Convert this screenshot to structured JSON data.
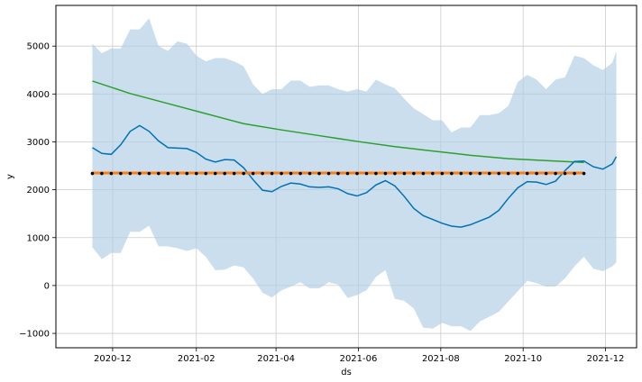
{
  "chart_data": {
    "type": "line",
    "xlabel": "ds",
    "ylabel": "y",
    "x_range": [
      "2020-10-20",
      "2021-12-24"
    ],
    "ylim": [
      -1300,
      5850
    ],
    "grid": true,
    "x_ticks": [
      {
        "date": "2020-12-01",
        "label": "2020-12"
      },
      {
        "date": "2021-02-01",
        "label": "2021-02"
      },
      {
        "date": "2021-04-01",
        "label": "2021-04"
      },
      {
        "date": "2021-06-01",
        "label": "2021-06"
      },
      {
        "date": "2021-08-01",
        "label": "2021-08"
      },
      {
        "date": "2021-10-01",
        "label": "2021-10"
      },
      {
        "date": "2021-12-01",
        "label": "2021-12"
      }
    ],
    "y_ticks": [
      -1000,
      0,
      1000,
      2000,
      3000,
      4000,
      5000
    ],
    "series": [
      {
        "role": "uncertainty-band",
        "color": "#aecde4",
        "x": [
          "2020-11-16",
          "2020-11-23",
          "2020-11-30",
          "2020-12-07",
          "2020-12-14",
          "2020-12-21",
          "2020-12-28",
          "2021-01-04",
          "2021-01-11",
          "2021-01-18",
          "2021-01-25",
          "2021-02-01",
          "2021-02-08",
          "2021-02-15",
          "2021-02-22",
          "2021-03-01",
          "2021-03-08",
          "2021-03-15",
          "2021-03-22",
          "2021-03-29",
          "2021-04-05",
          "2021-04-12",
          "2021-04-19",
          "2021-04-26",
          "2021-05-03",
          "2021-05-10",
          "2021-05-17",
          "2021-05-24",
          "2021-05-31",
          "2021-06-07",
          "2021-06-14",
          "2021-06-21",
          "2021-06-28",
          "2021-07-05",
          "2021-07-12",
          "2021-07-19",
          "2021-07-26",
          "2021-08-02",
          "2021-08-09",
          "2021-08-16",
          "2021-08-23",
          "2021-08-30",
          "2021-09-06",
          "2021-09-13",
          "2021-09-20",
          "2021-09-27",
          "2021-10-04",
          "2021-10-11",
          "2021-10-18",
          "2021-10-25",
          "2021-11-01",
          "2021-11-08",
          "2021-11-15",
          "2021-11-22",
          "2021-11-29",
          "2021-12-06",
          "2021-12-09"
        ],
        "upper": [
          5050,
          4850,
          4950,
          4950,
          5350,
          5350,
          5580,
          5000,
          4900,
          5100,
          5050,
          4800,
          4680,
          4750,
          4750,
          4680,
          4580,
          4200,
          4000,
          4100,
          4100,
          4280,
          4280,
          4150,
          4180,
          4180,
          4100,
          4050,
          4100,
          4050,
          4300,
          4200,
          4120,
          3900,
          3700,
          3580,
          3450,
          3450,
          3200,
          3300,
          3300,
          3560,
          3560,
          3600,
          3750,
          4250,
          4400,
          4300,
          4100,
          4300,
          4350,
          4800,
          4750,
          4600,
          4500,
          4650,
          4900
        ],
        "lower": [
          800,
          550,
          680,
          680,
          1120,
          1120,
          1250,
          820,
          820,
          780,
          720,
          780,
          600,
          320,
          330,
          420,
          380,
          150,
          -150,
          -250,
          -100,
          -20,
          70,
          -60,
          -60,
          70,
          20,
          -260,
          -200,
          -100,
          180,
          320,
          -280,
          -320,
          -480,
          -880,
          -900,
          -780,
          -850,
          -850,
          -950,
          -750,
          -650,
          -550,
          -330,
          -120,
          100,
          50,
          -20,
          -20,
          150,
          400,
          600,
          350,
          300,
          400,
          480
        ]
      },
      {
        "role": "forecast",
        "color": "#0072b2",
        "x": [
          "2020-11-16",
          "2020-11-23",
          "2020-11-30",
          "2020-12-07",
          "2020-12-14",
          "2020-12-21",
          "2020-12-28",
          "2021-01-04",
          "2021-01-11",
          "2021-01-18",
          "2021-01-25",
          "2021-02-01",
          "2021-02-08",
          "2021-02-15",
          "2021-02-22",
          "2021-03-01",
          "2021-03-08",
          "2021-03-15",
          "2021-03-22",
          "2021-03-29",
          "2021-04-05",
          "2021-04-12",
          "2021-04-19",
          "2021-04-26",
          "2021-05-03",
          "2021-05-10",
          "2021-05-17",
          "2021-05-24",
          "2021-05-31",
          "2021-06-07",
          "2021-06-14",
          "2021-06-21",
          "2021-06-28",
          "2021-07-05",
          "2021-07-12",
          "2021-07-19",
          "2021-07-26",
          "2021-08-02",
          "2021-08-09",
          "2021-08-16",
          "2021-08-23",
          "2021-08-30",
          "2021-09-06",
          "2021-09-13",
          "2021-09-20",
          "2021-09-27",
          "2021-10-04",
          "2021-10-11",
          "2021-10-18",
          "2021-10-25",
          "2021-11-01",
          "2021-11-08",
          "2021-11-15",
          "2021-11-22",
          "2021-11-29",
          "2021-12-06",
          "2021-12-09"
        ],
        "values": [
          2880,
          2760,
          2740,
          2940,
          3220,
          3340,
          3220,
          3020,
          2880,
          2870,
          2860,
          2780,
          2640,
          2580,
          2630,
          2620,
          2460,
          2210,
          1990,
          1960,
          2070,
          2140,
          2120,
          2060,
          2050,
          2060,
          2020,
          1920,
          1870,
          1940,
          2100,
          2190,
          2080,
          1860,
          1610,
          1460,
          1380,
          1300,
          1240,
          1220,
          1270,
          1350,
          1430,
          1570,
          1820,
          2040,
          2170,
          2160,
          2110,
          2180,
          2400,
          2590,
          2600,
          2480,
          2430,
          2540,
          2690
        ]
      },
      {
        "role": "trend",
        "color": "#2ca02c",
        "x": [
          "2020-11-16",
          "2020-12-14",
          "2021-01-11",
          "2021-02-08",
          "2021-03-08",
          "2021-04-05",
          "2021-05-03",
          "2021-05-31",
          "2021-06-28",
          "2021-07-26",
          "2021-08-23",
          "2021-09-20",
          "2021-10-18",
          "2021-11-15"
        ],
        "values": [
          4270,
          4010,
          3800,
          3590,
          3380,
          3250,
          3130,
          3010,
          2900,
          2810,
          2720,
          2650,
          2610,
          2570
        ]
      },
      {
        "role": "fitted-line",
        "color": "#ff7f0e",
        "x": [
          "2020-11-16",
          "2021-11-15"
        ],
        "values": [
          2350,
          2350
        ]
      },
      {
        "role": "observed-points",
        "color": "#000000",
        "x": [
          "2020-11-16",
          "2020-11-23",
          "2020-11-30",
          "2020-12-07",
          "2020-12-14",
          "2020-12-21",
          "2020-12-28",
          "2021-01-04",
          "2021-01-11",
          "2021-01-18",
          "2021-01-25",
          "2021-02-01",
          "2021-02-08",
          "2021-02-15",
          "2021-02-22",
          "2021-03-01",
          "2021-03-08",
          "2021-03-15",
          "2021-03-22",
          "2021-03-29",
          "2021-04-05",
          "2021-04-12",
          "2021-04-19",
          "2021-04-26",
          "2021-05-03",
          "2021-05-10",
          "2021-05-17",
          "2021-05-24",
          "2021-05-31",
          "2021-06-07",
          "2021-06-14",
          "2021-06-21",
          "2021-06-28",
          "2021-07-05",
          "2021-07-12",
          "2021-07-19",
          "2021-07-26",
          "2021-08-02",
          "2021-08-09",
          "2021-08-16",
          "2021-08-23",
          "2021-08-30",
          "2021-09-06",
          "2021-09-13",
          "2021-09-20",
          "2021-09-27",
          "2021-10-04",
          "2021-10-11",
          "2021-10-18",
          "2021-10-25",
          "2021-11-01",
          "2021-11-08",
          "2021-11-15"
        ],
        "values": [
          2340,
          2340,
          2340,
          2340,
          2340,
          2340,
          2340,
          2340,
          2340,
          2340,
          2340,
          2340,
          2340,
          2340,
          2340,
          2340,
          2340,
          2340,
          2340,
          2340,
          2340,
          2340,
          2340,
          2340,
          2340,
          2340,
          2340,
          2340,
          2340,
          2340,
          2340,
          2340,
          2340,
          2340,
          2340,
          2340,
          2340,
          2340,
          2340,
          2340,
          2340,
          2340,
          2340,
          2340,
          2340,
          2340,
          2340,
          2340,
          2340,
          2340,
          2340,
          2340,
          2340
        ]
      }
    ]
  }
}
